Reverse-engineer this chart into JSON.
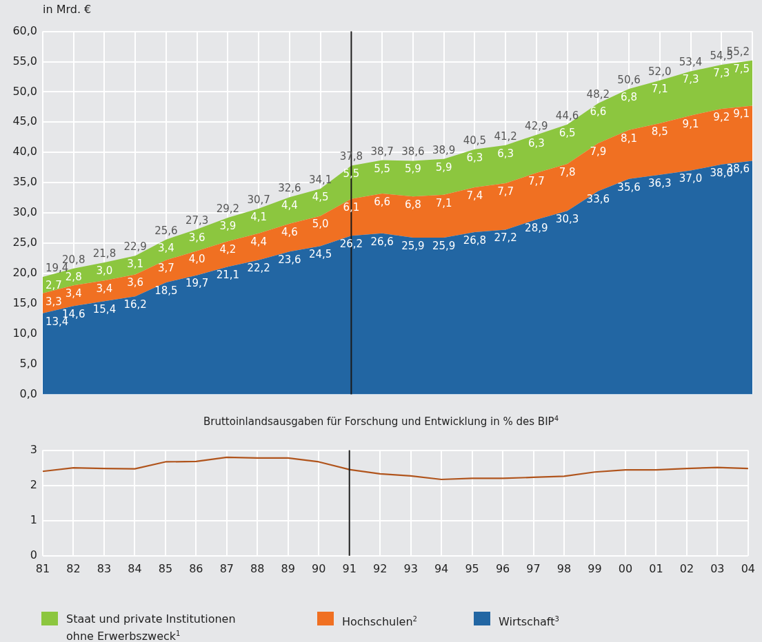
{
  "chart_data": [
    {
      "type": "area",
      "stacked": true,
      "ylabel": "in Mrd. €",
      "grid": true,
      "legend": "bottom",
      "tick_labels": "y",
      "categories": [
        "81",
        "82",
        "83",
        "84",
        "85",
        "86",
        "87",
        "88",
        "89",
        "90",
        "91",
        "92",
        "93",
        "94",
        "95",
        "96",
        "97",
        "98",
        "99",
        "00",
        "01",
        "02",
        "03",
        "04"
      ],
      "ylim": [
        0,
        60
      ],
      "yticks": [
        {
          "value": 0,
          "label": "0,0"
        },
        {
          "value": 5,
          "label": "5,0"
        },
        {
          "value": 10,
          "label": "10,0"
        },
        {
          "value": 15,
          "label": "15,0"
        },
        {
          "value": 20,
          "label": "20,0"
        },
        {
          "value": 25,
          "label": "25,0"
        },
        {
          "value": 30,
          "label": "30,0"
        },
        {
          "value": 35,
          "label": "35,0"
        },
        {
          "value": 40,
          "label": "40,0"
        },
        {
          "value": 45,
          "label": "45,0"
        },
        {
          "value": 50,
          "label": "50,0"
        },
        {
          "value": 55,
          "label": "55,0"
        },
        {
          "value": 60,
          "label": "60,0"
        }
      ],
      "ref_lines": [
        {
          "axis": "x",
          "value": "91",
          "color": "#1a1a1a"
        }
      ],
      "series": [
        {
          "name": "Wirtschaft$^{3}$",
          "color": "#2266a3",
          "values": [
            13.4,
            14.6,
            15.4,
            16.2,
            18.5,
            19.7,
            21.1,
            22.2,
            23.6,
            24.5,
            26.2,
            26.6,
            25.9,
            25.9,
            26.8,
            27.2,
            28.9,
            30.3,
            33.6,
            35.6,
            36.3,
            37.0,
            38.0,
            38.6
          ],
          "value_labels": [
            "13,4",
            "14,6",
            "15,4",
            "16,2",
            "18,5",
            "19,7",
            "21,1",
            "22,2",
            "23,6",
            "24,5",
            "26,2",
            "26,6",
            "25,9",
            "25,9",
            "26,8",
            "27,2",
            "28,9",
            "30,3",
            "33,6",
            "35,6",
            "36,3",
            "37,0",
            "38,0",
            "38,6"
          ]
        },
        {
          "name": "Hochschulen$^{2}$",
          "color": "#f07022",
          "values": [
            3.3,
            3.4,
            3.4,
            3.6,
            3.7,
            4.0,
            4.2,
            4.4,
            4.6,
            5.0,
            6.1,
            6.6,
            6.8,
            7.1,
            7.4,
            7.7,
            7.7,
            7.8,
            7.9,
            8.1,
            8.5,
            9.1,
            9.2,
            9.1
          ],
          "value_labels": [
            "3,3",
            "3,4",
            "3,4",
            "3,6",
            "3,7",
            "4,0",
            "4,2",
            "4,4",
            "4,6",
            "5,0",
            "6,1",
            "6,6",
            "6,8",
            "7,1",
            "7,4",
            "7,7",
            "7,7",
            "7,8",
            "7,9",
            "8,1",
            "8,5",
            "9,1",
            "9,2",
            "9,1"
          ]
        },
        {
          "name": "Staat und private Institutionen ohne Erwerbszweck$^{1}$",
          "color": "#8cc63f",
          "values": [
            2.7,
            2.8,
            3.0,
            3.1,
            3.4,
            3.6,
            3.9,
            4.1,
            4.4,
            4.5,
            5.5,
            5.5,
            5.9,
            5.9,
            6.3,
            6.3,
            6.3,
            6.5,
            6.6,
            6.8,
            7.1,
            7.3,
            7.3,
            7.5
          ],
          "value_labels": [
            "2,7",
            "2,8",
            "3,0",
            "3,1",
            "3,4",
            "3,6",
            "3,9",
            "4,1",
            "4,4",
            "4,5",
            "5,5",
            "5,5",
            "5,9",
            "5,9",
            "6,3",
            "6,3",
            "6,3",
            "6,5",
            "6,6",
            "6,8",
            "7,1",
            "7,3",
            "7,3",
            "7,5"
          ]
        }
      ],
      "totals": [
        "19,4",
        "20,8",
        "21,8",
        "22,9",
        "25,6",
        "27,3",
        "29,2",
        "30,7",
        "32,6",
        "34,1",
        "37,8",
        "38,7",
        "38,6",
        "38,9",
        "40,5",
        "41,2",
        "42,9",
        "44,6",
        "48,2",
        "50,6",
        "52,0",
        "53,4",
        "54,5",
        "55,2"
      ]
    },
    {
      "type": "line",
      "title": "Bruttoinlandsausgaben für Forschung und Entwicklung in % des BIP$^{4}$",
      "grid": true,
      "legend": false,
      "marker": "none",
      "line_style": "solid",
      "categories": [
        "81",
        "82",
        "83",
        "84",
        "85",
        "86",
        "87",
        "88",
        "89",
        "90",
        "91",
        "92",
        "93",
        "94",
        "95",
        "96",
        "97",
        "98",
        "99",
        "00",
        "01",
        "02",
        "03",
        "04"
      ],
      "ylim": [
        0,
        3
      ],
      "yticks": [
        0,
        1,
        2,
        3
      ],
      "ref_lines": [
        {
          "axis": "x",
          "value": "91",
          "color": "#1a1a1a"
        }
      ],
      "series": [
        {
          "color": "#b0541c",
          "values": [
            2.4,
            2.5,
            2.48,
            2.47,
            2.67,
            2.68,
            2.8,
            2.78,
            2.78,
            2.67,
            2.45,
            2.33,
            2.27,
            2.17,
            2.2,
            2.2,
            2.23,
            2.26,
            2.38,
            2.44,
            2.44,
            2.48,
            2.51,
            2.48
          ]
        }
      ]
    }
  ]
}
